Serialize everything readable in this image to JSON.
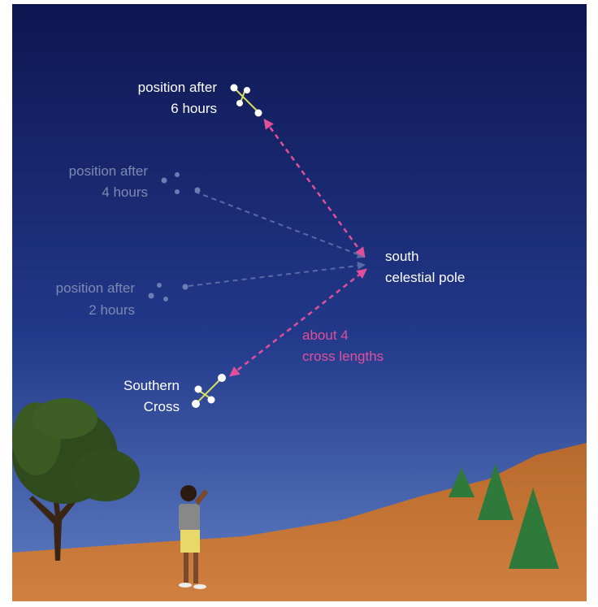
{
  "labels": {
    "six_hours": [
      "position after",
      "6 hours"
    ],
    "four_hours": [
      "position after",
      "4 hours"
    ],
    "two_hours": [
      "position after",
      "2 hours"
    ],
    "pole": [
      "south",
      "celestial pole"
    ],
    "distance": [
      "about 4",
      "cross lengths"
    ],
    "cross": [
      "Southern",
      "Cross"
    ]
  }
}
